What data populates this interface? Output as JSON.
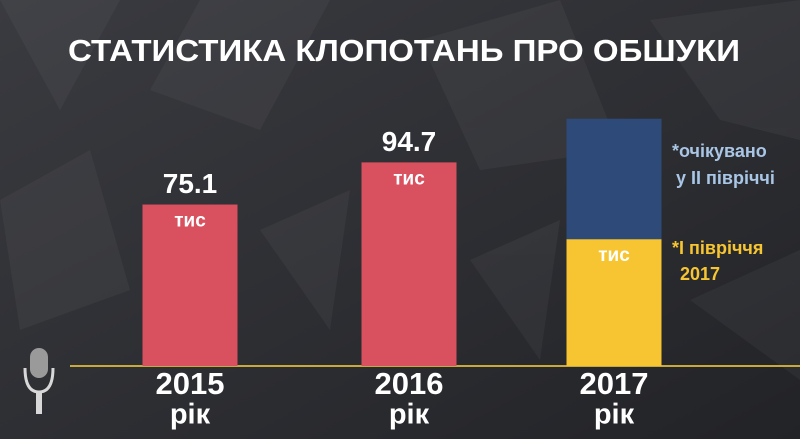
{
  "chart_data": {
    "type": "stacked_bar",
    "title": "СТАТИСТИКА КЛОПОТАНЬ ПРО ОБШУКИ",
    "categories": [
      "2015",
      "2016",
      "2017"
    ],
    "category_suffix": "рік",
    "unit": "тис",
    "series": [
      {
        "values": [
          75.1,
          94.7,
          59
        ],
        "colors": [
          "#d9505f",
          "#d9505f",
          "#f6c531"
        ],
        "show_labels": true
      },
      {
        "values": [
          null,
          null,
          56
        ],
        "colors": [
          "#2e4a78",
          "#2e4a78",
          "#2e4a78"
        ],
        "show_labels": false
      }
    ],
    "ylim": [
      0,
      120
    ],
    "annotations": [
      {
        "lines": [
          "*очікувано",
          "у ІІ півріччі"
        ],
        "color": "#a9c6e6"
      },
      {
        "lines": [
          "*І півріччя",
          "2017"
        ],
        "color": "#f6c531"
      }
    ]
  }
}
